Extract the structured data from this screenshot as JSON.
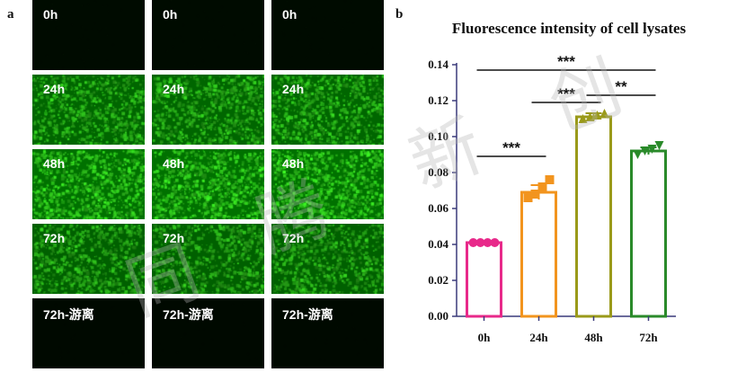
{
  "panel_a": {
    "letter": "a",
    "rows": [
      {
        "label": "0h",
        "brightness": 0.03
      },
      {
        "label": "24h",
        "brightness": 0.85
      },
      {
        "label": "48h",
        "brightness": 0.95
      },
      {
        "label": "72h",
        "brightness": 0.8
      },
      {
        "label": "72h-游离",
        "brightness": 0.01
      }
    ],
    "columns": 3
  },
  "panel_b": {
    "letter": "b"
  },
  "watermark": [
    "同",
    "腾",
    "新",
    "创"
  ],
  "colors": {
    "axis": "#3a3a7a",
    "fluor": "#1fbf1f"
  },
  "chart_data": {
    "type": "bar",
    "title": "Fluorescence intensity of cell lysates",
    "categories": [
      "0h",
      "24h",
      "48h",
      "72h"
    ],
    "values": [
      0.041,
      0.069,
      0.111,
      0.092
    ],
    "points": [
      [
        0.041,
        0.041,
        0.041,
        0.041
      ],
      [
        0.066,
        0.068,
        0.072,
        0.076
      ],
      [
        0.11,
        0.111,
        0.112,
        0.113
      ],
      [
        0.09,
        0.092,
        0.093,
        0.095
      ]
    ],
    "errors": [
      0.0005,
      0.004,
      0.002,
      0.002
    ],
    "colors": [
      "#e8298a",
      "#f2941e",
      "#9a9a1a",
      "#2a8a2a"
    ],
    "markers": [
      "circle",
      "square",
      "triangle-up",
      "triangle-down"
    ],
    "ylim": [
      0,
      0.14
    ],
    "yticks": [
      "0.00",
      "0.02",
      "0.04",
      "0.06",
      "0.08",
      "0.10",
      "0.12",
      "0.14"
    ],
    "significance": [
      {
        "from": 0,
        "to": 1,
        "level": 0.089,
        "label": "***"
      },
      {
        "from": 1,
        "to": 2,
        "level": 0.119,
        "label": "***"
      },
      {
        "from": 2,
        "to": 3,
        "level": 0.123,
        "label": "**"
      },
      {
        "from": 0,
        "to": 3,
        "level": 0.137,
        "label": "***"
      }
    ],
    "grid": false
  }
}
